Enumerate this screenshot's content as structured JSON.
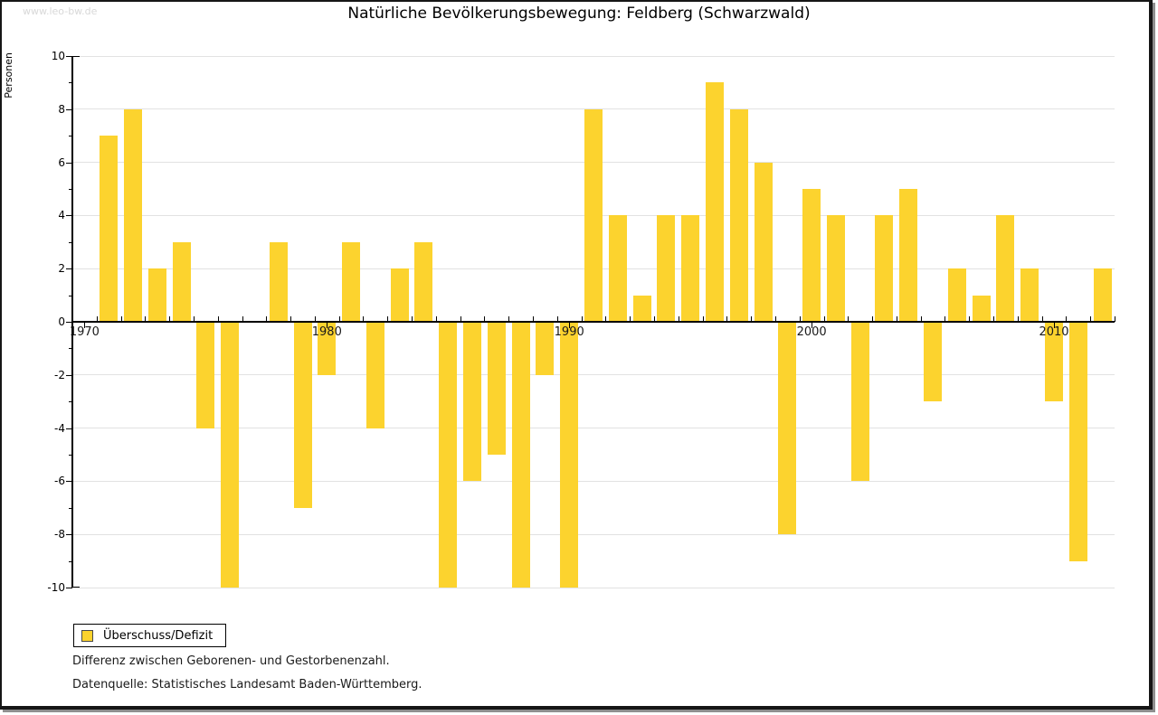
{
  "watermark": "www.leo-bw.de",
  "title": "Natürliche Bevölkerungsbewegung: Feldberg (Schwarzwald)",
  "legend": {
    "label": "Überschuss/Defizit"
  },
  "footnotes": [
    "Differenz zwischen Geborenen- und Gestorbenenzahl.",
    "Datenquelle: Statistisches Landesamt Baden-Württemberg."
  ],
  "colors": {
    "bar": "#FCD32E",
    "grid": "#E2E2E2",
    "axis": "#000000",
    "watermark": "#D8D8D8",
    "frame_shadow": "#8F8F8F"
  },
  "chart_data": {
    "type": "bar",
    "title": "Natürliche Bevölkerungsbewegung: Feldberg (Schwarzwald)",
    "series_name": "Überschuss/Defizit",
    "xlabel": "",
    "ylabel": "Personen",
    "ylim": [
      -10,
      10
    ],
    "ytick_step": 2,
    "grid": true,
    "legend_position": "bottom-left",
    "xticks": [
      1970,
      1980,
      1990,
      2000,
      2010
    ],
    "categories": [
      1970,
      1971,
      1972,
      1973,
      1974,
      1975,
      1976,
      1977,
      1978,
      1979,
      1980,
      1981,
      1982,
      1983,
      1984,
      1985,
      1986,
      1987,
      1988,
      1989,
      1990,
      1991,
      1992,
      1993,
      1994,
      1995,
      1996,
      1997,
      1998,
      1999,
      2000,
      2001,
      2002,
      2003,
      2004,
      2005,
      2006,
      2007,
      2008,
      2009,
      2010,
      2011,
      2012
    ],
    "values": [
      0,
      7,
      8,
      2,
      3,
      -4,
      -10,
      0,
      3,
      -7,
      -2,
      3,
      -4,
      2,
      3,
      -10,
      -6,
      -5,
      -10,
      -2,
      -10,
      8,
      4,
      1,
      4,
      4,
      9,
      8,
      6,
      -8,
      5,
      4,
      -6,
      4,
      5,
      -3,
      2,
      1,
      4,
      2,
      -3,
      -9,
      2
    ]
  }
}
